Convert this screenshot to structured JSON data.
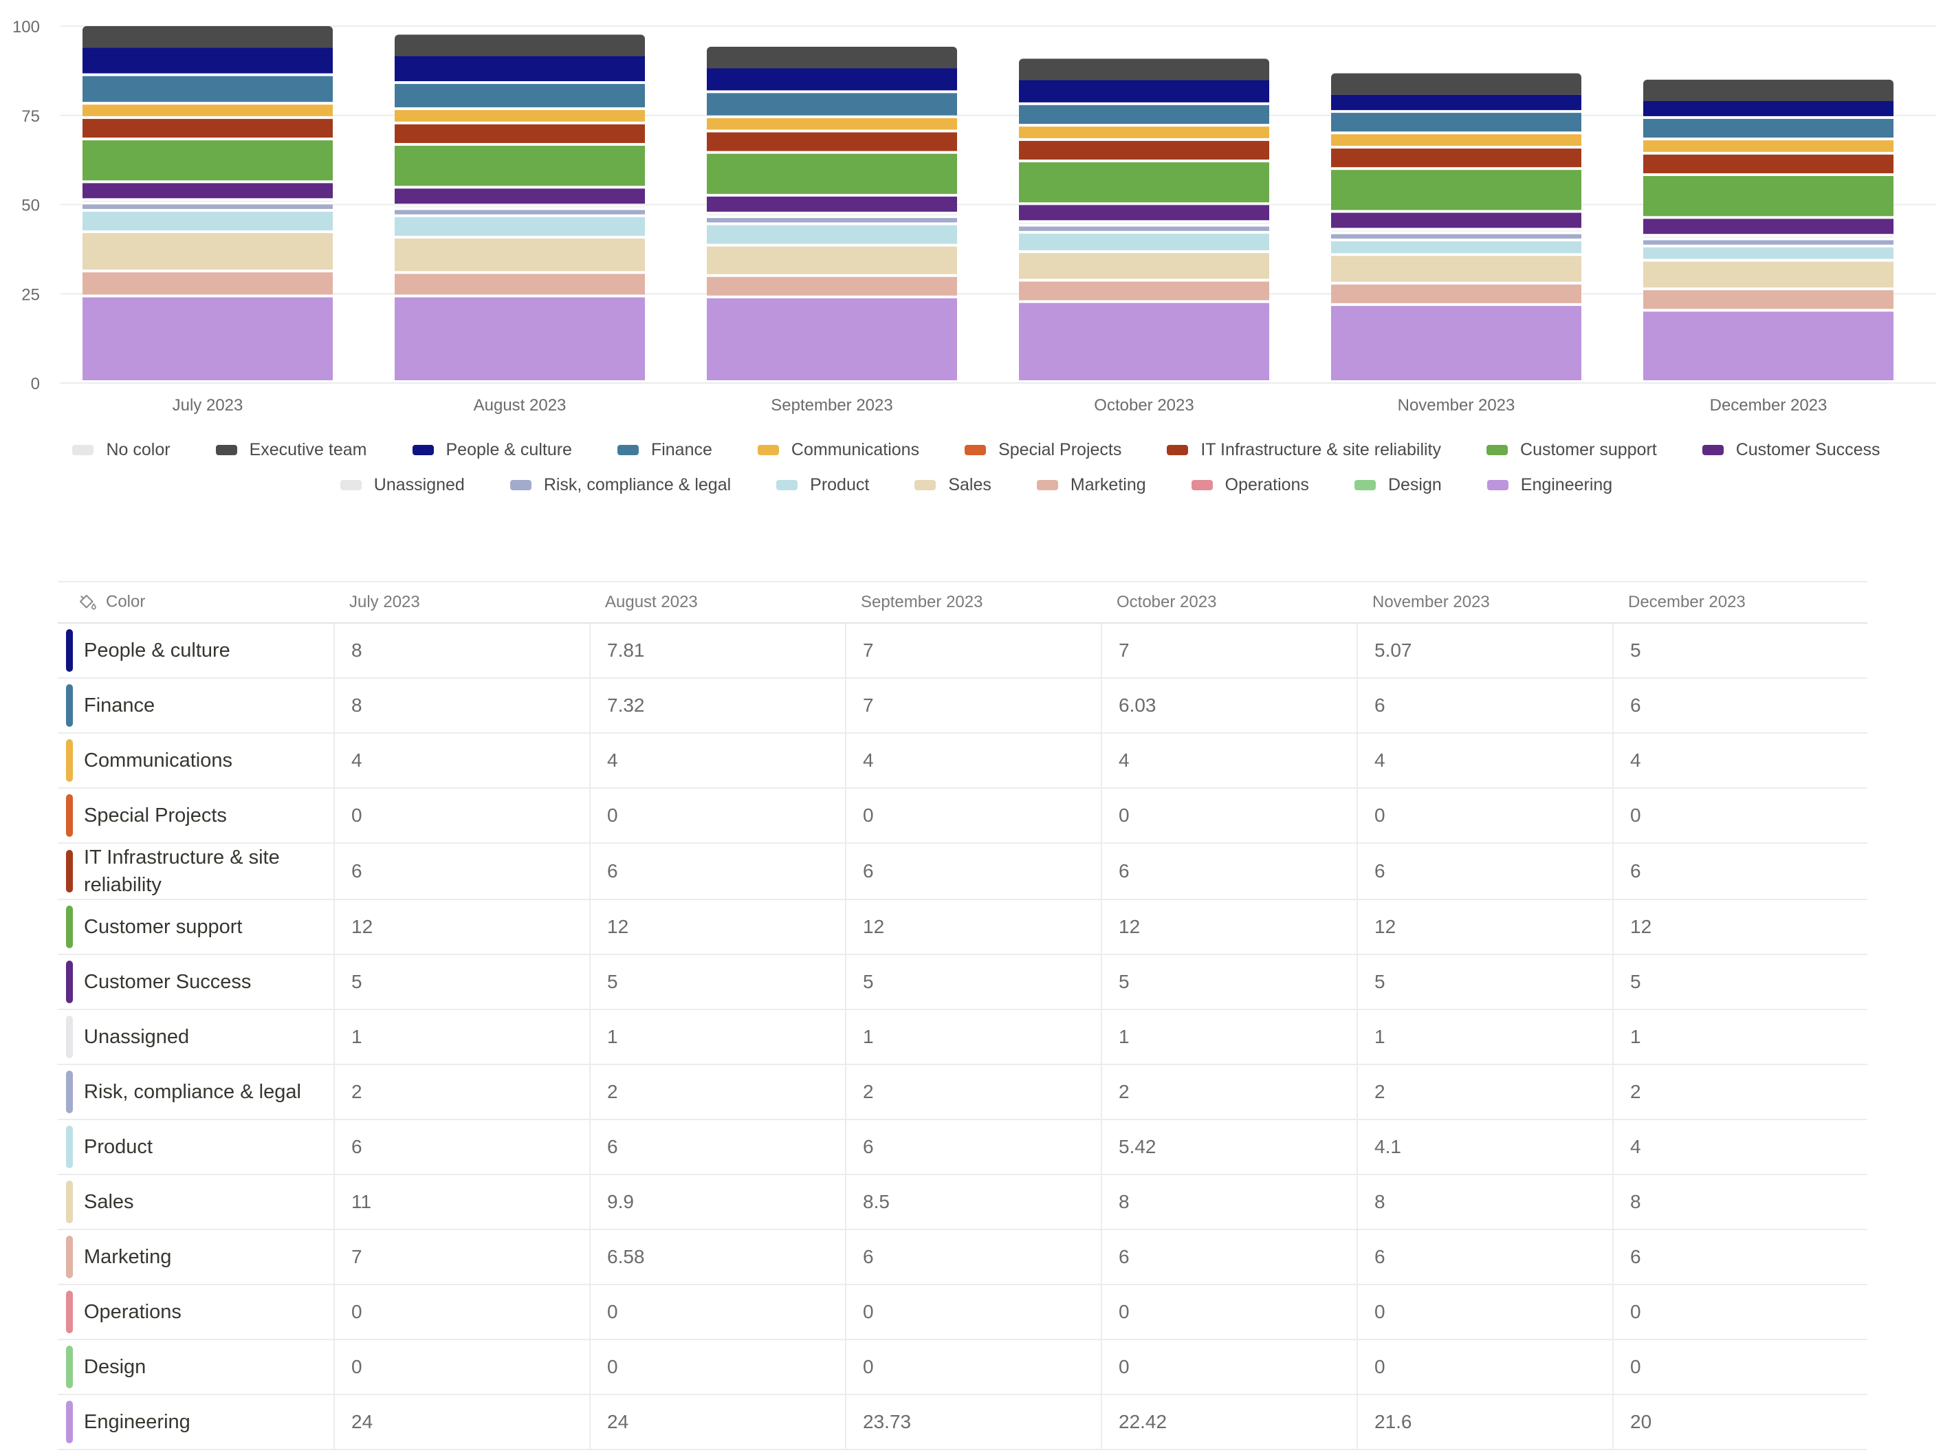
{
  "chart_data": {
    "type": "bar",
    "stacked": true,
    "categories": [
      "July 2023",
      "August 2023",
      "September 2023",
      "October 2023",
      "November 2023",
      "December 2023"
    ],
    "ylim": [
      0,
      100
    ],
    "yticks": [
      "0",
      "25",
      "50",
      "75",
      "100"
    ],
    "grid": true,
    "legend_position": "bottom",
    "series": [
      {
        "name": "Engineering",
        "color": "#bc95dc",
        "values": [
          24,
          24,
          23.73,
          22.42,
          21.6,
          20
        ]
      },
      {
        "name": "Design",
        "color": "#8ecf8c",
        "values": [
          0,
          0,
          0,
          0,
          0,
          0
        ]
      },
      {
        "name": "Operations",
        "color": "#e38c95",
        "values": [
          0,
          0,
          0,
          0,
          0,
          0
        ]
      },
      {
        "name": "Marketing",
        "color": "#e1b3a4",
        "values": [
          7,
          6.58,
          6,
          6,
          6,
          6
        ]
      },
      {
        "name": "Sales",
        "color": "#e7d8b6",
        "values": [
          11,
          9.9,
          8.5,
          8,
          8,
          8
        ]
      },
      {
        "name": "Product",
        "color": "#bde0e6",
        "values": [
          6,
          6,
          6,
          5.42,
          4.1,
          4
        ]
      },
      {
        "name": "Risk, compliance & legal",
        "color": "#a2abcb",
        "values": [
          2,
          2,
          2,
          2,
          2,
          2
        ]
      },
      {
        "name": "Unassigned",
        "color": "#e7e7e9",
        "values": [
          1,
          1,
          1,
          1,
          1,
          1
        ]
      },
      {
        "name": "Customer Success",
        "color": "#5e2a84",
        "values": [
          5,
          5,
          5,
          5,
          5,
          5
        ]
      },
      {
        "name": "Customer support",
        "color": "#6aab4a",
        "values": [
          12,
          12,
          12,
          12,
          12,
          12
        ]
      },
      {
        "name": "IT Infrastructure & site reliability",
        "color": "#a43a1c",
        "values": [
          6,
          6,
          6,
          6,
          6,
          6
        ]
      },
      {
        "name": "Special Projects",
        "color": "#d65f2b",
        "values": [
          0,
          0,
          0,
          0,
          0,
          0
        ]
      },
      {
        "name": "Communications",
        "color": "#ecb545",
        "values": [
          4,
          4,
          4,
          4,
          4,
          4
        ]
      },
      {
        "name": "Finance",
        "color": "#437a9c",
        "values": [
          8,
          7.32,
          7,
          6.03,
          6,
          6
        ]
      },
      {
        "name": "People & culture",
        "color": "#0f1283",
        "values": [
          8,
          7.81,
          7,
          7,
          5.07,
          5
        ]
      },
      {
        "name": "Executive team",
        "color": "#4b4b4b",
        "values": [
          6,
          6,
          6,
          6,
          6,
          6
        ]
      }
    ]
  },
  "legend": [
    {
      "label": "No color",
      "color": "#e7e7e9"
    },
    {
      "label": "Executive team",
      "color": "#4b4b4b"
    },
    {
      "label": "People & culture",
      "color": "#0f1283"
    },
    {
      "label": "Finance",
      "color": "#437a9c"
    },
    {
      "label": "Communications",
      "color": "#ecb545"
    },
    {
      "label": "Special Projects",
      "color": "#d65f2b"
    },
    {
      "label": "IT Infrastructure & site reliability",
      "color": "#a43a1c"
    },
    {
      "label": "Customer support",
      "color": "#6aab4a"
    },
    {
      "label": "Customer Success",
      "color": "#5e2a84"
    },
    {
      "label": "Unassigned",
      "color": "#e7e7e9"
    },
    {
      "label": "Risk, compliance & legal",
      "color": "#a2abcb"
    },
    {
      "label": "Product",
      "color": "#bde0e6"
    },
    {
      "label": "Sales",
      "color": "#e7d8b6"
    },
    {
      "label": "Marketing",
      "color": "#e1b3a4"
    },
    {
      "label": "Operations",
      "color": "#e38c95"
    },
    {
      "label": "Design",
      "color": "#8ecf8c"
    },
    {
      "label": "Engineering",
      "color": "#bc95dc"
    }
  ],
  "table": {
    "color_header": "Color",
    "columns": [
      "July 2023",
      "August 2023",
      "September 2023",
      "October 2023",
      "November 2023",
      "December 2023"
    ],
    "rows": [
      {
        "name": "People & culture",
        "color": "#0f1283",
        "values": [
          "8",
          "7.81",
          "7",
          "7",
          "5.07",
          "5"
        ]
      },
      {
        "name": "Finance",
        "color": "#437a9c",
        "values": [
          "8",
          "7.32",
          "7",
          "6.03",
          "6",
          "6"
        ]
      },
      {
        "name": "Communications",
        "color": "#ecb545",
        "values": [
          "4",
          "4",
          "4",
          "4",
          "4",
          "4"
        ]
      },
      {
        "name": "Special Projects",
        "color": "#d65f2b",
        "values": [
          "0",
          "0",
          "0",
          "0",
          "0",
          "0"
        ]
      },
      {
        "name": "IT Infrastructure & site reliability",
        "color": "#a43a1c",
        "values": [
          "6",
          "6",
          "6",
          "6",
          "6",
          "6"
        ]
      },
      {
        "name": "Customer support",
        "color": "#6aab4a",
        "values": [
          "12",
          "12",
          "12",
          "12",
          "12",
          "12"
        ]
      },
      {
        "name": "Customer Success",
        "color": "#5e2a84",
        "values": [
          "5",
          "5",
          "5",
          "5",
          "5",
          "5"
        ]
      },
      {
        "name": "Unassigned",
        "color": "#e7e7e9",
        "values": [
          "1",
          "1",
          "1",
          "1",
          "1",
          "1"
        ]
      },
      {
        "name": "Risk, compliance & legal",
        "color": "#a2abcb",
        "values": [
          "2",
          "2",
          "2",
          "2",
          "2",
          "2"
        ]
      },
      {
        "name": "Product",
        "color": "#bde0e6",
        "values": [
          "6",
          "6",
          "6",
          "5.42",
          "4.1",
          "4"
        ]
      },
      {
        "name": "Sales",
        "color": "#e7d8b6",
        "values": [
          "11",
          "9.9",
          "8.5",
          "8",
          "8",
          "8"
        ]
      },
      {
        "name": "Marketing",
        "color": "#e1b3a4",
        "values": [
          "7",
          "6.58",
          "6",
          "6",
          "6",
          "6"
        ]
      },
      {
        "name": "Operations",
        "color": "#e38c95",
        "values": [
          "0",
          "0",
          "0",
          "0",
          "0",
          "0"
        ]
      },
      {
        "name": "Design",
        "color": "#8ecf8c",
        "values": [
          "0",
          "0",
          "0",
          "0",
          "0",
          "0"
        ]
      },
      {
        "name": "Engineering",
        "color": "#bc95dc",
        "values": [
          "24",
          "24",
          "23.73",
          "22.42",
          "21.6",
          "20"
        ]
      }
    ]
  }
}
